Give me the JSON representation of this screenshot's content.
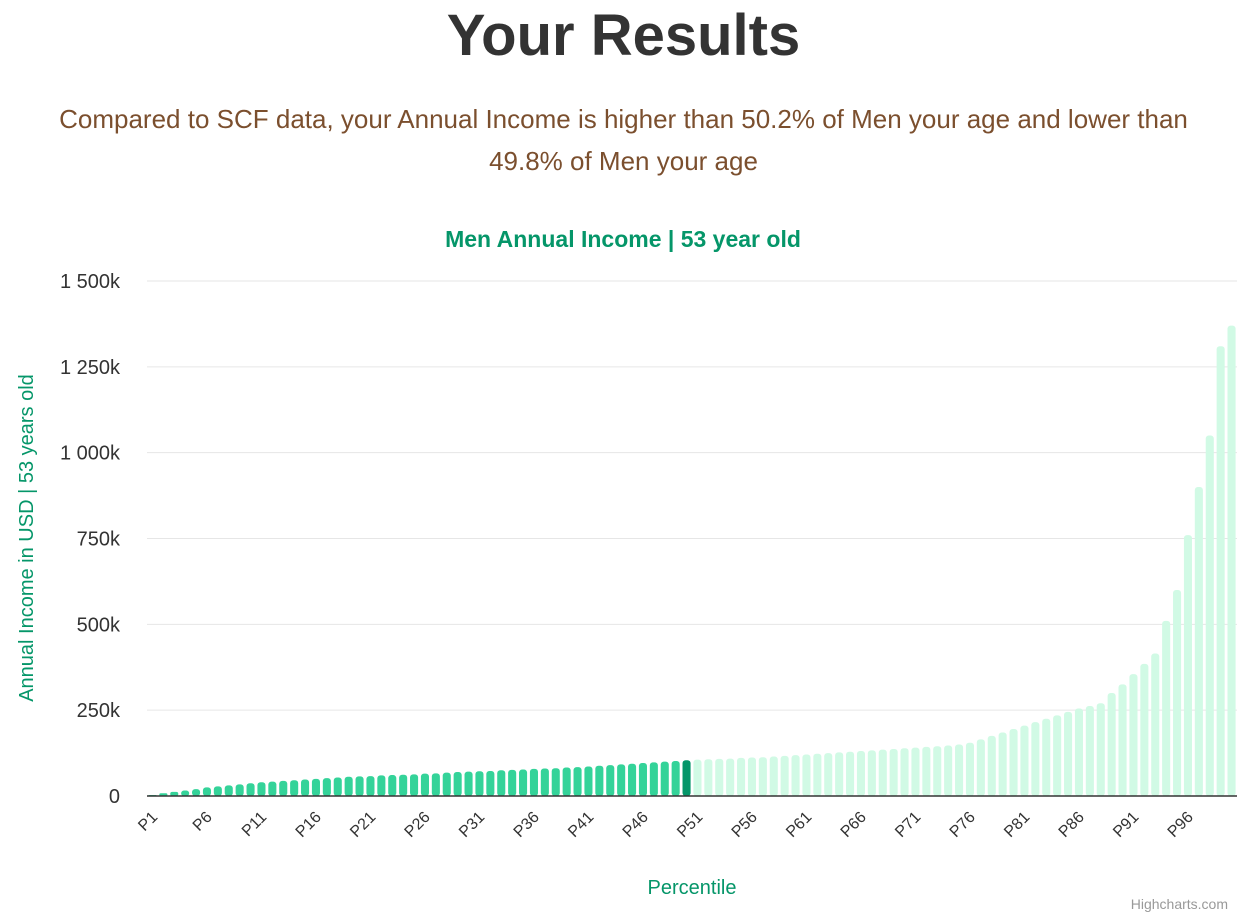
{
  "page": {
    "title": "Your Results",
    "summary_line1": "Compared to SCF data, your Annual Income is higher than 50.2% of Men your age and lower than",
    "summary_line2": "49.8% of Men your age",
    "credits": "Highcharts.com"
  },
  "colors": {
    "below": "#34d399",
    "current": "#059669",
    "above": "#d1fae5",
    "title": "#059669",
    "summary": "#7b4f2e"
  },
  "chart_data": {
    "type": "bar",
    "title": "Men Annual Income | 53 year old",
    "xlabel": "Percentile",
    "ylabel": "Annual Income in USD | 53 years old",
    "ylim": [
      0,
      1500000
    ],
    "yticks": [
      "0",
      "250k",
      "500k",
      "750k",
      "1 000k",
      "1 250k",
      "1 500k"
    ],
    "ytick_values": [
      0,
      250000,
      500000,
      750000,
      1000000,
      1250000,
      1500000
    ],
    "xtick_labels": [
      "P1",
      "P6",
      "P11",
      "P16",
      "P21",
      "P26",
      "P31",
      "P36",
      "P41",
      "P46",
      "P51",
      "P56",
      "P61",
      "P66",
      "P71",
      "P76",
      "P81",
      "P86",
      "P91",
      "P96"
    ],
    "highlight_index": 49,
    "categories": [
      "P1",
      "P2",
      "P3",
      "P4",
      "P5",
      "P6",
      "P7",
      "P8",
      "P9",
      "P10",
      "P11",
      "P12",
      "P13",
      "P14",
      "P15",
      "P16",
      "P17",
      "P18",
      "P19",
      "P20",
      "P21",
      "P22",
      "P23",
      "P24",
      "P25",
      "P26",
      "P27",
      "P28",
      "P29",
      "P30",
      "P31",
      "P32",
      "P33",
      "P34",
      "P35",
      "P36",
      "P37",
      "P38",
      "P39",
      "P40",
      "P41",
      "P42",
      "P43",
      "P44",
      "P45",
      "P46",
      "P47",
      "P48",
      "P49",
      "P50",
      "P51",
      "P52",
      "P53",
      "P54",
      "P55",
      "P56",
      "P57",
      "P58",
      "P59",
      "P60",
      "P61",
      "P62",
      "P63",
      "P64",
      "P65",
      "P66",
      "P67",
      "P68",
      "P69",
      "P70",
      "P71",
      "P72",
      "P73",
      "P74",
      "P75",
      "P76",
      "P77",
      "P78",
      "P79",
      "P80",
      "P81",
      "P82",
      "P83",
      "P84",
      "P85",
      "P86",
      "P87",
      "P88",
      "P89",
      "P90",
      "P91",
      "P92",
      "P93",
      "P94",
      "P95",
      "P96",
      "P97",
      "P98",
      "P99",
      "P100"
    ],
    "values": [
      2000,
      8000,
      12000,
      16000,
      20000,
      25000,
      28000,
      31000,
      34000,
      37000,
      40000,
      42000,
      44000,
      46000,
      48000,
      50000,
      52000,
      54000,
      56000,
      57000,
      58000,
      60000,
      61000,
      62000,
      63000,
      65000,
      66000,
      68000,
      70000,
      71000,
      72000,
      73000,
      75000,
      76000,
      77000,
      79000,
      80000,
      81000,
      83000,
      84000,
      86000,
      88000,
      90000,
      92000,
      94000,
      96000,
      98000,
      100000,
      102000,
      104000,
      106000,
      107000,
      108000,
      109000,
      111000,
      112000,
      113000,
      115000,
      117000,
      119000,
      121000,
      123000,
      125000,
      127000,
      129000,
      131000,
      133000,
      135000,
      137000,
      139000,
      141000,
      143000,
      145000,
      147000,
      150000,
      155000,
      165000,
      175000,
      185000,
      195000,
      205000,
      215000,
      225000,
      235000,
      245000,
      255000,
      262000,
      270000,
      300000,
      325000,
      355000,
      385000,
      415000,
      510000,
      600000,
      760000,
      900000,
      1050000,
      1310000,
      1370000
    ]
  }
}
